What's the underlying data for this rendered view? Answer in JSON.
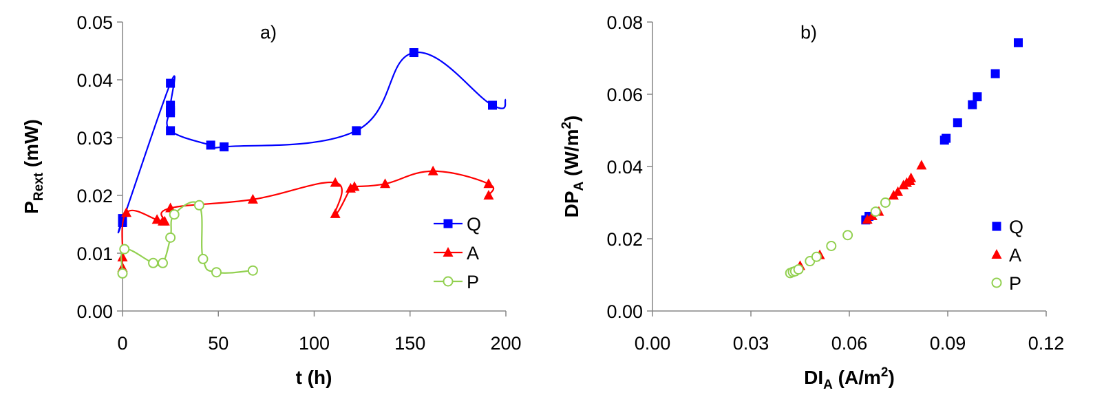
{
  "chart_data": [
    {
      "type": "line",
      "panel_label": "a)",
      "xlabel": "t (h)",
      "ylabel": {
        "main": "P",
        "sub": "Rext",
        "tail": " (mW)"
      },
      "xlim": [
        0,
        200
      ],
      "ylim": [
        0,
        0.05
      ],
      "xticks": [
        "0",
        "50",
        "100",
        "150",
        "200"
      ],
      "yticks": [
        "0.00",
        "0.01",
        "0.02",
        "0.03",
        "0.04",
        "0.05"
      ],
      "grid": false,
      "legend_position": "bottom-right",
      "series": [
        {
          "name": "Q",
          "color": "#0000ff",
          "marker": "square",
          "x": [
            0,
            0,
            0,
            25,
            25,
            25,
            25,
            25,
            46,
            53,
            122,
            152,
            193,
            200
          ],
          "y": [
            0.0153,
            0.016,
            0.0155,
            0.0394,
            0.0356,
            0.0343,
            0.0347,
            0.0312,
            0.0287,
            0.0284,
            0.0312,
            0.0447,
            0.0356,
            0.0366
          ],
          "markers": [
            true,
            true,
            true,
            true,
            true,
            true,
            true,
            true,
            true,
            true,
            true,
            true,
            true,
            false
          ]
        },
        {
          "name": "A",
          "color": "#ff0000",
          "marker": "triangle",
          "x": [
            0,
            0,
            2,
            18,
            21,
            22,
            25,
            68,
            111,
            111,
            119,
            121,
            137,
            162,
            191,
            191
          ],
          "y": [
            0.0075,
            0.0093,
            0.017,
            0.0158,
            0.0155,
            0.0155,
            0.0178,
            0.0193,
            0.0222,
            0.0168,
            0.0212,
            0.0215,
            0.022,
            0.0242,
            0.022,
            0.02
          ]
        },
        {
          "name": "P",
          "color": "#92d050",
          "marker": "circle-open",
          "x": [
            0,
            1,
            16,
            21,
            25,
            27,
            40,
            42,
            49,
            68
          ],
          "y": [
            0.0065,
            0.0107,
            0.0083,
            0.0083,
            0.0127,
            0.0167,
            0.0183,
            0.009,
            0.0067,
            0.007
          ]
        }
      ]
    },
    {
      "type": "scatter",
      "panel_label": "b)",
      "xlabel": {
        "main": "DI",
        "sub": "A",
        "tail": " (A/m",
        "sup": "2",
        "end": ")"
      },
      "ylabel": {
        "main": "DP",
        "sub": "A",
        "tail": " (W/m",
        "sup": "2",
        "end": ")"
      },
      "xlim": [
        0,
        0.12
      ],
      "ylim": [
        0,
        0.08
      ],
      "xticks": [
        "0.00",
        "0.03",
        "0.06",
        "0.09",
        "0.12"
      ],
      "yticks": [
        "0.00",
        "0.02",
        "0.04",
        "0.06",
        "0.08"
      ],
      "grid": false,
      "legend_position": "bottom-right",
      "series": [
        {
          "name": "Q",
          "color": "#0000ff",
          "marker": "square",
          "x": [
            0.065,
            0.066,
            0.089,
            0.0895,
            0.093,
            0.0975,
            0.099,
            0.1045,
            0.1115
          ],
          "y": [
            0.0252,
            0.0262,
            0.0473,
            0.0478,
            0.0521,
            0.0571,
            0.0593,
            0.0657,
            0.0743
          ]
        },
        {
          "name": "A",
          "color": "#ff0000",
          "marker": "triangle",
          "x": [
            0.045,
            0.051,
            0.0655,
            0.067,
            0.069,
            0.0735,
            0.0748,
            0.0765,
            0.0775,
            0.0785,
            0.0788,
            0.082
          ],
          "y": [
            0.0125,
            0.0155,
            0.0253,
            0.0263,
            0.0275,
            0.032,
            0.033,
            0.0348,
            0.0355,
            0.036,
            0.0368,
            0.0403
          ]
        },
        {
          "name": "P",
          "color": "#92d050",
          "marker": "circle-open",
          "x": [
            0.042,
            0.0428,
            0.0435,
            0.0445,
            0.048,
            0.05,
            0.0545,
            0.0595,
            0.068,
            0.071
          ],
          "y": [
            0.0105,
            0.0108,
            0.011,
            0.0115,
            0.0138,
            0.015,
            0.018,
            0.021,
            0.0275,
            0.03
          ]
        }
      ]
    }
  ]
}
